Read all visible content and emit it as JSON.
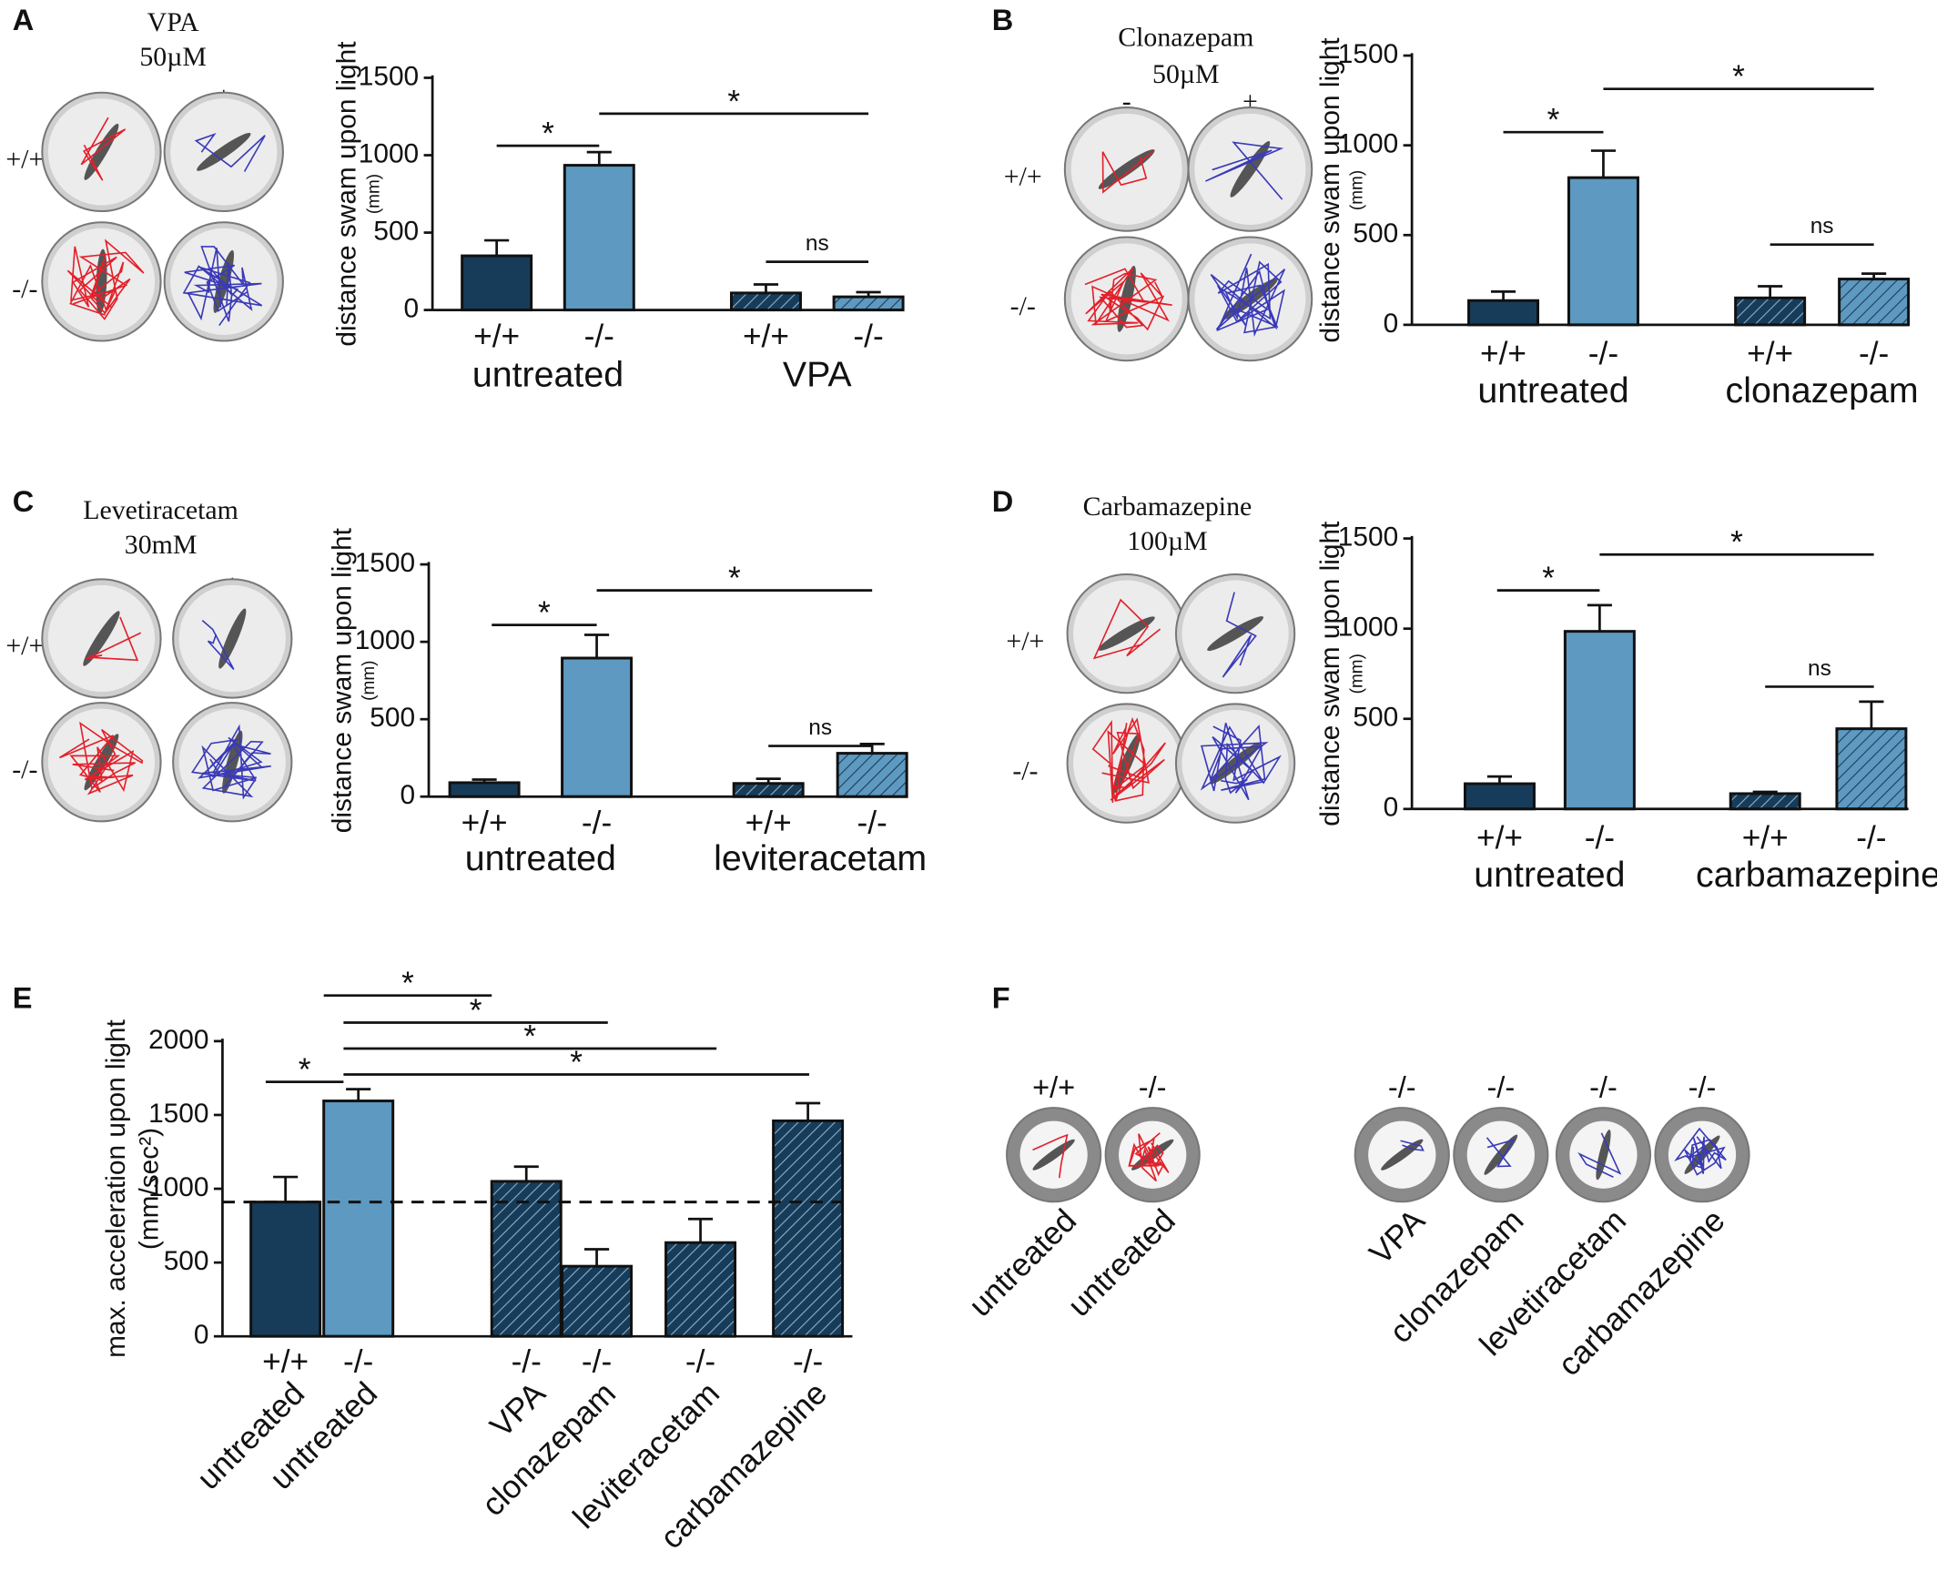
{
  "letters": [
    "A",
    "B",
    "C",
    "D",
    "E",
    "F"
  ],
  "wells": [
    {
      "drug": "VPA",
      "dose": "50µM",
      "columns": [
        "-",
        "+"
      ],
      "rows": [
        "+/+",
        "-/-"
      ]
    },
    {
      "drug": "Clonazepam",
      "dose": "50µM",
      "columns": [
        "-",
        "+"
      ],
      "rows": [
        "+/+",
        "-/-"
      ]
    },
    {
      "drug": "Levetiracetam",
      "dose": "30mM",
      "columns": [
        "-",
        "+"
      ],
      "rows": [
        "+/+",
        "-/-"
      ]
    },
    {
      "drug": "Carbamazepine",
      "dose": "100µM",
      "columns": [
        "-",
        "+"
      ],
      "rows": [
        "+/+",
        "-/-"
      ]
    }
  ],
  "panel_f": {
    "genotypes": [
      "+/+",
      "-/-",
      "-/-",
      "-/-",
      "-/-",
      "-/-"
    ],
    "treatments": [
      "untreated",
      "untreated",
      "VPA",
      "clonazepam",
      "levetiracetam",
      "carbamazepine"
    ]
  },
  "chart_data": [
    {
      "type": "bar",
      "y_label": "distance swam upon light",
      "y_unit": "(mm)",
      "categories": [
        "+/+",
        "-/-",
        "+/+",
        "-/-"
      ],
      "groups": [
        "untreated",
        "VPA"
      ],
      "values": [
        350,
        935,
        110,
        85
      ],
      "errors": [
        100,
        85,
        55,
        30
      ],
      "colors": [
        "#173c5a",
        "#5d99c1",
        "#173c5a",
        "#5d99c1"
      ],
      "hatch": [
        false,
        false,
        true,
        true
      ],
      "ylim": [
        0,
        1500
      ],
      "yticks": [
        0,
        500,
        1000,
        1500
      ],
      "annotations": [
        "*",
        "*",
        "ns"
      ]
    },
    {
      "type": "bar",
      "y_label": "distance swam upon light",
      "y_unit": "(mm)",
      "categories": [
        "+/+",
        "-/-",
        "+/+",
        "-/-"
      ],
      "groups": [
        "untreated",
        "clonazepam"
      ],
      "values": [
        135,
        820,
        150,
        255
      ],
      "errors": [
        50,
        150,
        65,
        30
      ],
      "colors": [
        "#173c5a",
        "#5d99c1",
        "#173c5a",
        "#5d99c1"
      ],
      "hatch": [
        false,
        false,
        true,
        true
      ],
      "ylim": [
        0,
        1500
      ],
      "yticks": [
        0,
        500,
        1000,
        1500
      ],
      "annotations": [
        "*",
        "*",
        "ns"
      ]
    },
    {
      "type": "bar",
      "y_label": "distance swam upon light",
      "y_unit": "(mm)",
      "categories": [
        "+/+",
        "-/-",
        "+/+",
        "-/-"
      ],
      "groups": [
        "untreated",
        "leviteracetam"
      ],
      "values": [
        90,
        895,
        85,
        280
      ],
      "errors": [
        20,
        150,
        30,
        60
      ],
      "colors": [
        "#173c5a",
        "#5d99c1",
        "#173c5a",
        "#5d99c1"
      ],
      "hatch": [
        false,
        false,
        true,
        true
      ],
      "ylim": [
        0,
        1500
      ],
      "yticks": [
        0,
        500,
        1000,
        1500
      ],
      "annotations": [
        "*",
        "*",
        "ns"
      ]
    },
    {
      "type": "bar",
      "y_label": "distance swam upon light",
      "y_unit": "(mm)",
      "categories": [
        "+/+",
        "-/-",
        "+/+",
        "-/-"
      ],
      "groups": [
        "untreated",
        "carbamazepine"
      ],
      "values": [
        140,
        985,
        85,
        445
      ],
      "errors": [
        40,
        145,
        10,
        150
      ],
      "colors": [
        "#173c5a",
        "#5d99c1",
        "#173c5a",
        "#5d99c1"
      ],
      "hatch": [
        false,
        false,
        true,
        true
      ],
      "ylim": [
        0,
        1500
      ],
      "yticks": [
        0,
        500,
        1000,
        1500
      ],
      "annotations": [
        "*",
        "*",
        "ns"
      ]
    },
    {
      "type": "bar",
      "y_label": "max. acceleration upon light",
      "y_unit": "(mm/sec²)",
      "categories": [
        "+/+",
        "-/-",
        "-/-",
        "-/-",
        "-/-",
        "-/-"
      ],
      "treatments": [
        "untreated",
        "untreated",
        "VPA",
        "clonazepam",
        "leviteracetam",
        "carbamazepine"
      ],
      "values": [
        910,
        1595,
        1050,
        475,
        635,
        1460
      ],
      "errors": [
        170,
        80,
        100,
        115,
        160,
        120
      ],
      "colors": [
        "#173c5a",
        "#5d99c1",
        "#173c5a",
        "#173c5a",
        "#173c5a",
        "#173c5a"
      ],
      "hatch": [
        false,
        false,
        true,
        true,
        true,
        true
      ],
      "ylim": [
        0,
        2000
      ],
      "yticks": [
        0,
        500,
        1000,
        1500,
        2000
      ],
      "reference_line": "dashed",
      "annotations": [
        "*",
        "*",
        "*",
        "*",
        "*"
      ]
    }
  ]
}
